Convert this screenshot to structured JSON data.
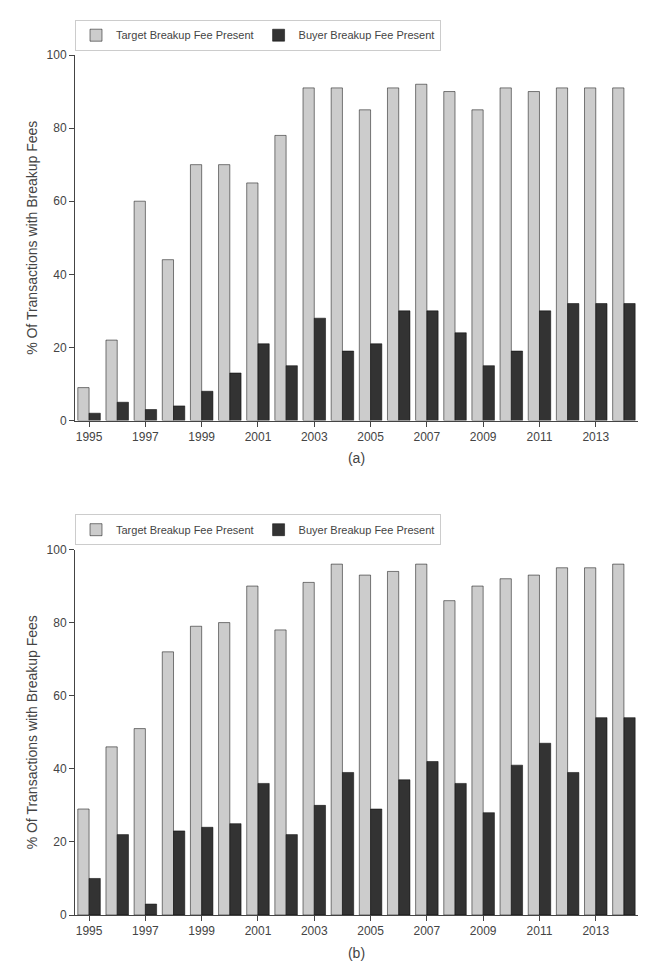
{
  "chart_data": [
    {
      "type": "bar",
      "xlabel": "(a)",
      "ylabel": "% Of Transactions with Breakup Fees",
      "categories": [
        "1995",
        null,
        "1997",
        null,
        "1999",
        null,
        "2001",
        null,
        "2003",
        null,
        "2005",
        null,
        "2007",
        null,
        "2009",
        null,
        "2011",
        null,
        "2013",
        null
      ],
      "series": [
        {
          "name": "Target Breakup Fee Present",
          "color": "#cccccc",
          "values": [
            9,
            22,
            60,
            44,
            70,
            70,
            65,
            78,
            91,
            91,
            85,
            91,
            92,
            90,
            85,
            91,
            90,
            91,
            91,
            91
          ]
        },
        {
          "name": "Buyer Breakup Fee Present",
          "color": "#333333",
          "values": [
            2,
            5,
            3,
            4,
            8,
            13,
            21,
            15,
            28,
            19,
            21,
            30,
            30,
            24,
            15,
            19,
            30,
            32,
            32,
            32
          ]
        }
      ],
      "ylim": [
        0,
        100
      ],
      "yticks": [
        0,
        20,
        40,
        60,
        80,
        100
      ],
      "grid": false,
      "legend": "upper left"
    },
    {
      "type": "bar",
      "xlabel": "(b)",
      "ylabel": "% Of Transactions with Breakup Fees",
      "categories": [
        "1995",
        null,
        "1997",
        null,
        "1999",
        null,
        "2001",
        null,
        "2003",
        null,
        "2005",
        null,
        "2007",
        null,
        "2009",
        null,
        "2011",
        null,
        "2013",
        null
      ],
      "series": [
        {
          "name": "Target Breakup Fee Present",
          "color": "#cccccc",
          "values": [
            29,
            46,
            51,
            72,
            79,
            80,
            90,
            78,
            91,
            96,
            93,
            94,
            96,
            86,
            90,
            92,
            93,
            95,
            95,
            96
          ]
        },
        {
          "name": "Buyer Breakup Fee Present",
          "color": "#333333",
          "values": [
            10,
            22,
            3,
            23,
            24,
            25,
            36,
            22,
            30,
            39,
            29,
            37,
            42,
            36,
            28,
            41,
            47,
            39,
            54,
            54
          ]
        }
      ],
      "ylim": [
        0,
        100
      ],
      "yticks": [
        0,
        20,
        40,
        60,
        80,
        100
      ],
      "grid": false,
      "legend": "upper left"
    }
  ]
}
